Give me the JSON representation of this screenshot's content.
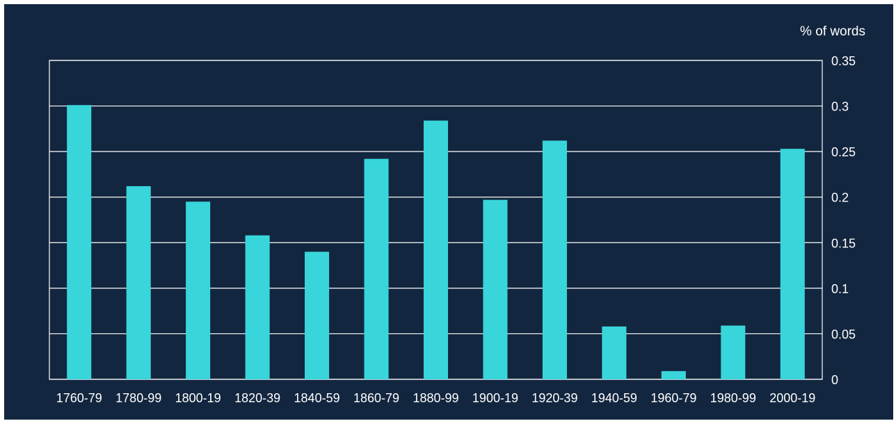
{
  "colors": {
    "background": "#13263f",
    "bar": "#38d6db",
    "gridline": "#ffffff",
    "text": "#ffffff"
  },
  "chart_data": {
    "type": "bar",
    "title": "",
    "xlabel": "",
    "ylabel": "% of words",
    "ylim": [
      0,
      0.35
    ],
    "y_ticks": [
      "0",
      "0.05",
      "0.1",
      "0.15",
      "0.2",
      "0.25",
      "0.3",
      "0.35"
    ],
    "y_axis_side": "right",
    "grid": true,
    "legend": "none",
    "categories": [
      "1760-79",
      "1780-99",
      "1800-19",
      "1820-39",
      "1840-59",
      "1860-79",
      "1880-99",
      "1900-19",
      "1920-39",
      "1940-59",
      "1960-79",
      "1980-99",
      "2000-19"
    ],
    "values": [
      0.301,
      0.212,
      0.195,
      0.158,
      0.14,
      0.242,
      0.284,
      0.197,
      0.262,
      0.058,
      0.009,
      0.059,
      0.253
    ]
  }
}
